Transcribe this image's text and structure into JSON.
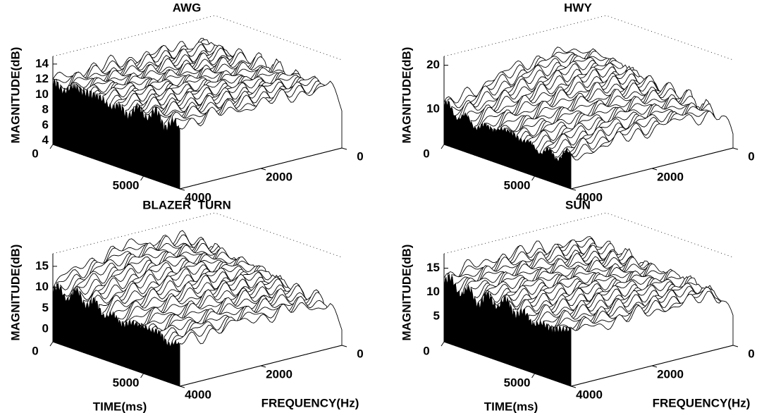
{
  "chart_data": [
    {
      "type": "waterfall",
      "title": "AWG",
      "zlabel": "MAGNITUDE(dB)",
      "zlim": [
        3.5,
        15
      ],
      "zticks": [
        4,
        6,
        8,
        10,
        12,
        14
      ],
      "xlim": [
        0,
        7000
      ],
      "xticks": [
        0,
        5000
      ],
      "ylim": [
        0,
        4000
      ],
      "yticks": [
        4000,
        2000,
        0
      ]
    },
    {
      "type": "waterfall",
      "title": "HWY",
      "zlabel": "MAGNITUDE(dB)",
      "zlim": [
        2,
        22
      ],
      "zticks": [
        10,
        20
      ],
      "xlim": [
        0,
        7000
      ],
      "xticks": [
        0,
        5000
      ],
      "ylim": [
        0,
        4000
      ],
      "yticks": [
        4000,
        2000,
        0
      ]
    },
    {
      "type": "waterfall",
      "title": "BLAZER  TURN",
      "zlabel": "MAGNITUDE(dB)",
      "xlabel": "TIME(ms)",
      "ylabel": "FREQUENCY(Hz)",
      "zlim": [
        -3,
        18
      ],
      "zticks": [
        0,
        5,
        10,
        15
      ],
      "xlim": [
        0,
        7000
      ],
      "xticks": [
        0,
        5000
      ],
      "ylim": [
        0,
        4000
      ],
      "yticks": [
        4000,
        2000,
        0
      ]
    },
    {
      "type": "waterfall",
      "title": "SUN",
      "zlabel": "MAGNITUDE(dB)",
      "xlabel": "TIME(ms)",
      "ylabel": "FREQUENCY(Hz)",
      "zlim": [
        -0.3,
        18
      ],
      "zticks": [
        5,
        10,
        15
      ],
      "xlim": [
        0,
        7000
      ],
      "xticks": [
        0,
        5000
      ],
      "ylim": [
        0,
        4000
      ],
      "yticks": [
        4000,
        2000,
        0
      ]
    }
  ]
}
